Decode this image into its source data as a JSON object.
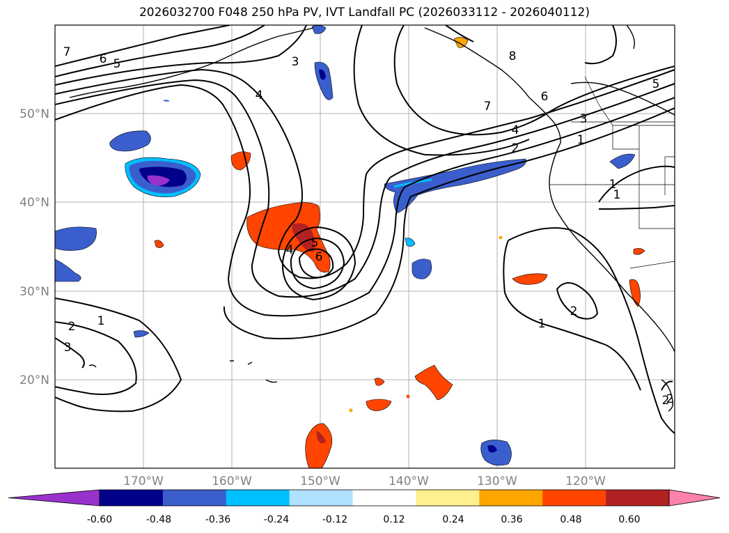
{
  "title": "2026032700 F048 250 hPa PV, IVT Landfall PC (2026033112 - 2026040112)",
  "axes": {
    "lat_labels": [
      "50°N",
      "40°N",
      "30°N",
      "20°N"
    ],
    "lon_labels": [
      "170°W",
      "160°W",
      "150°W",
      "140°W",
      "130°W",
      "120°W"
    ],
    "label_color": "#808080"
  },
  "contour_labels": [
    "7",
    "6",
    "5",
    "3",
    "4",
    "7",
    "8",
    "6",
    "5",
    "3",
    "1",
    "4",
    "2",
    "1",
    "5",
    "6",
    "4",
    "1",
    "2",
    "1",
    "2",
    "3",
    "2",
    "1",
    "2"
  ],
  "colorbar": {
    "colors": [
      "#9932cc",
      "#00008b",
      "#3a5fcd",
      "#00bfff",
      "#b0e2ff",
      "#ffffff",
      "#fff08f",
      "#ffa500",
      "#ff4500",
      "#b22222",
      "#ff82ab"
    ],
    "ticks": [
      "-0.60",
      "-0.48",
      "-0.36",
      "-0.24",
      "-0.12",
      "0.12",
      "0.24",
      "0.36",
      "0.48",
      "0.60"
    ]
  }
}
